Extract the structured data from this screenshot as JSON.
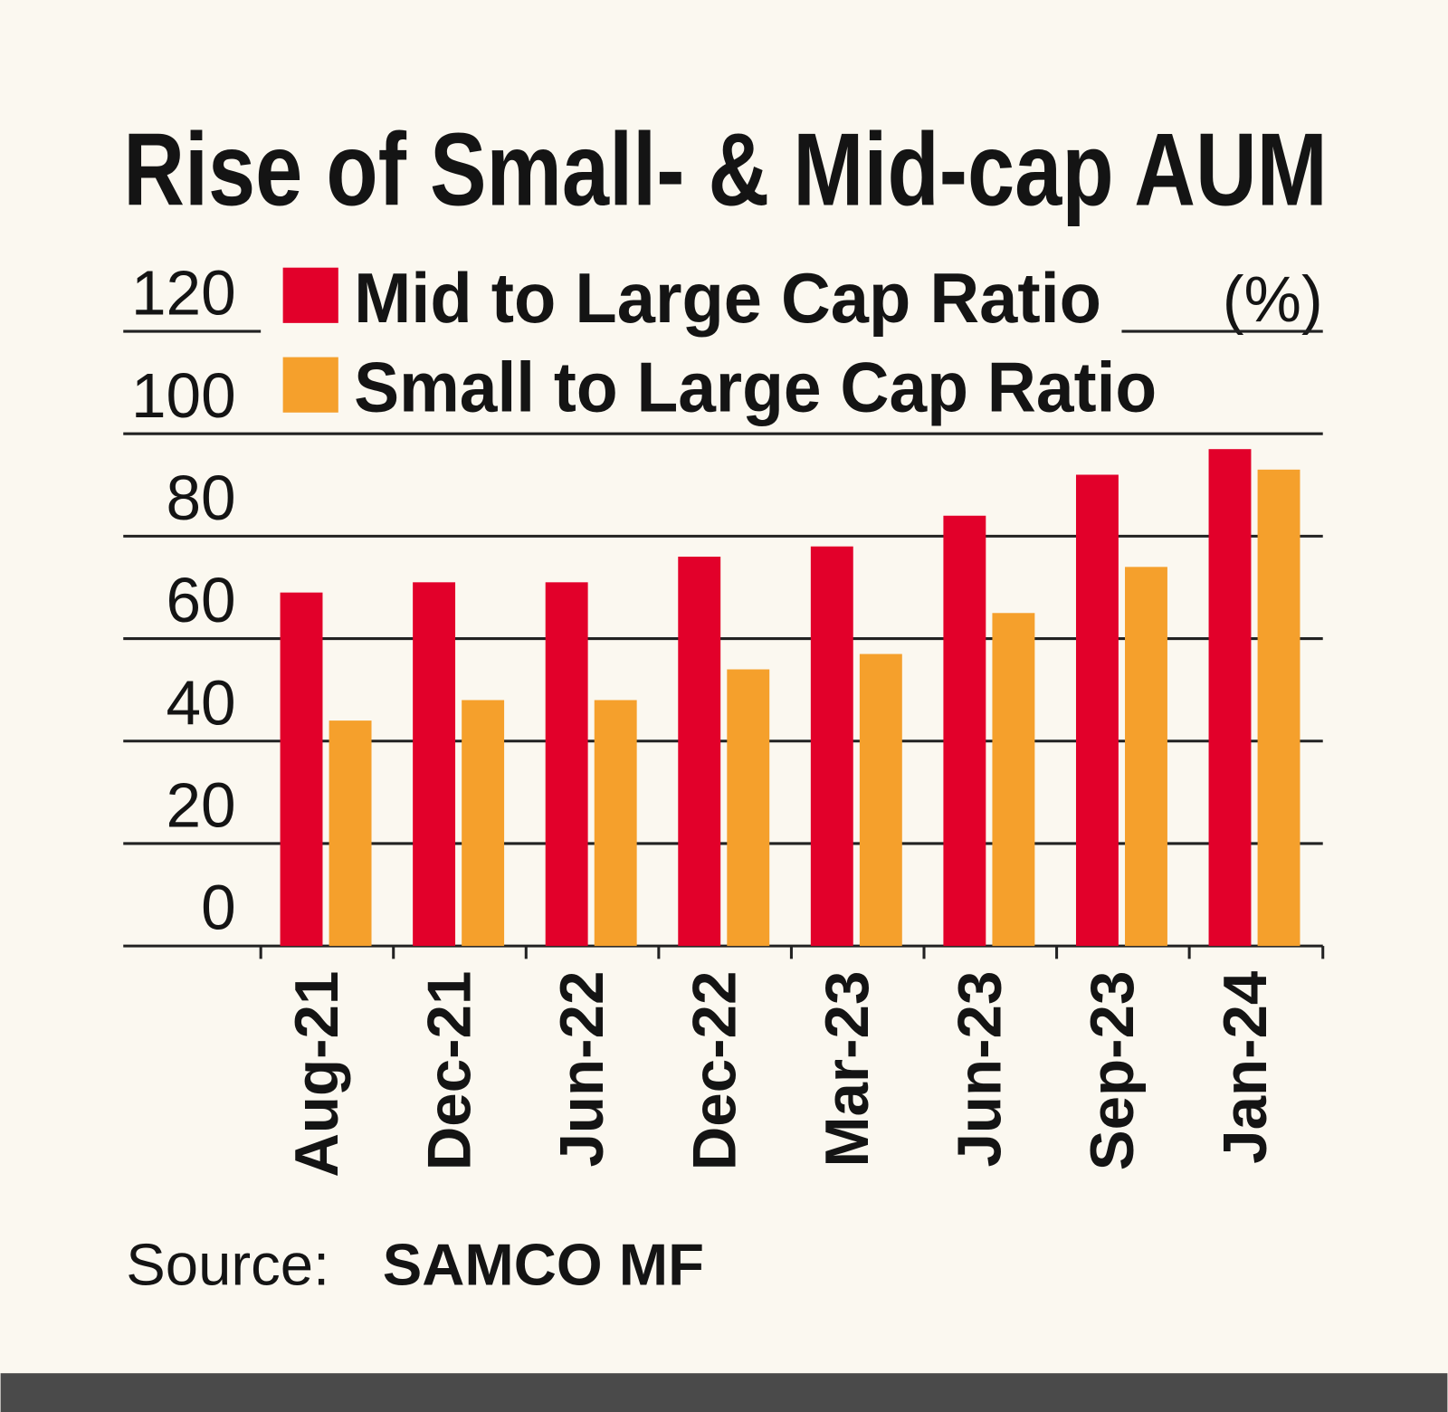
{
  "chart_data": {
    "type": "bar",
    "title": "Rise of Small- & Mid-cap AUM",
    "unit_label": "(%)",
    "categories": [
      "Aug-21",
      "Dec-21",
      "Jun-22",
      "Dec-22",
      "Mar-23",
      "Jun-23",
      "Sep-23",
      "Jan-24"
    ],
    "series": [
      {
        "name": "Mid to Large Cap Ratio",
        "color": "#e2002a",
        "values": [
          69,
          71,
          71,
          76,
          78,
          84,
          92,
          97
        ]
      },
      {
        "name": "Small to Large Cap Ratio",
        "color": "#f5a02c",
        "values": [
          44,
          48,
          48,
          54,
          57,
          65,
          74,
          93
        ]
      }
    ],
    "ylim": [
      0,
      120
    ],
    "yticks": [
      0,
      20,
      40,
      60,
      80,
      100,
      120
    ],
    "grid": true,
    "source_label": "Source:",
    "source": "SAMCO MF"
  }
}
